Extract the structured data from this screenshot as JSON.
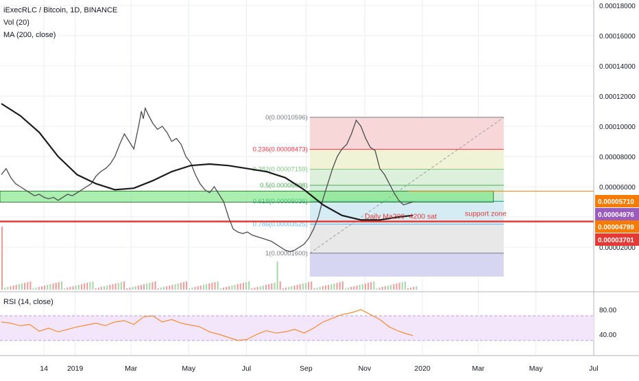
{
  "header": {
    "title": "iExecRLC / Bitcoin, 1D, BINANCE",
    "indicator_vol": "Vol (20)",
    "indicator_ma": "MA (200, close)",
    "indicator_rsi": "RSI (14, close)"
  },
  "chart_data": {
    "type": "line",
    "ylim": [
      0.0,
      0.00019
    ],
    "price_ticks": [
      "0.00018000",
      "0.00016000",
      "0.00014000",
      "0.00012000",
      "0.00010000",
      "0.00008000",
      "0.00006000",
      "0.00004000",
      "0.00002000"
    ],
    "price_tick_values": [
      0.00018,
      0.00016,
      0.00014,
      0.00012,
      0.0001,
      8e-05,
      6e-05,
      4e-05,
      2e-05
    ],
    "x_tick_labels": [
      "14",
      "2019",
      "Mar",
      "May",
      "Jul",
      "Sep",
      "Nov",
      "2020",
      "Mar",
      "May",
      "Jul"
    ],
    "x_tick_index": [
      45,
      78,
      137,
      198,
      259,
      322,
      384,
      445,
      504,
      565,
      626
    ],
    "price_series": {
      "name": "iExecRLC / Bitcoin",
      "x": [
        0,
        5,
        10,
        15,
        20,
        25,
        30,
        35,
        40,
        45,
        50,
        55,
        60,
        65,
        70,
        75,
        80,
        85,
        90,
        95,
        100,
        105,
        110,
        115,
        120,
        125,
        130,
        135,
        140,
        145,
        148,
        150,
        152,
        155,
        160,
        165,
        170,
        175,
        180,
        185,
        190,
        195,
        200,
        205,
        210,
        215,
        220,
        225,
        230,
        235,
        240,
        245,
        250,
        255,
        260,
        265,
        270,
        275,
        280,
        285,
        290,
        295,
        300,
        305,
        310,
        315,
        320,
        325,
        330,
        335,
        340,
        345,
        350,
        355,
        360,
        365,
        370,
        375,
        380,
        385,
        390,
        395,
        400,
        405,
        410,
        415,
        420,
        425,
        430,
        435
      ],
      "y": [
        6.8e-05,
        7.2e-05,
        6.6e-05,
        6.2e-05,
        6e-05,
        5.8e-05,
        5.6e-05,
        5.4e-05,
        5.5e-05,
        5.3e-05,
        5.2e-05,
        5.3e-05,
        5.1e-05,
        5.3e-05,
        5.5e-05,
        5.4e-05,
        5.6e-05,
        5.8e-05,
        6e-05,
        6.2e-05,
        6.7e-05,
        7e-05,
        7.2e-05,
        7.5e-05,
        8e-05,
        8.8e-05,
        9.5e-05,
        9e-05,
        8.5e-05,
        0.0001,
        0.00011,
        0.000105,
        0.000112,
        0.000108,
        0.000102,
        9.8e-05,
        0.0001,
        9.6e-05,
        9e-05,
        9.2e-05,
        8.8e-05,
        8e-05,
        7.6e-05,
        6.8e-05,
        6.2e-05,
        5.8e-05,
        5.6e-05,
        6e-05,
        5.5e-05,
        5e-05,
        4e-05,
        3.2e-05,
        3e-05,
        2.9e-05,
        3e-05,
        2.8e-05,
        2.7e-05,
        2.6e-05,
        2.5e-05,
        2.4e-05,
        2.2e-05,
        2e-05,
        1.8e-05,
        1.7e-05,
        1.8e-05,
        2e-05,
        2.2e-05,
        2.6e-05,
        3.2e-05,
        4e-05,
        5.2e-05,
        6.2e-05,
        7.2e-05,
        8e-05,
        8.5e-05,
        8.8e-05,
        9.5e-05,
        0.000104,
        0.0001,
        9.2e-05,
        8.6e-05,
        8.4e-05,
        7.2e-05,
        6.8e-05,
        6.2e-05,
        5.6e-05,
        5.1e-05,
        4.8e-05,
        4.9e-05,
        5e-05
      ]
    },
    "ma200_series": {
      "x": [
        0,
        20,
        40,
        60,
        80,
        100,
        120,
        140,
        160,
        180,
        200,
        220,
        240,
        260,
        280,
        300,
        320,
        340,
        360,
        380,
        400,
        420,
        435
      ],
      "y": [
        0.000115,
        0.000107,
        9.6e-05,
        8e-05,
        6.8e-05,
        6.2e-05,
        5.8e-05,
        5.9e-05,
        6.4e-05,
        7e-05,
        7.4e-05,
        7.5e-05,
        7.4e-05,
        7.2e-05,
        7e-05,
        6.6e-05,
        5.8e-05,
        4.8e-05,
        4.1e-05,
        3.8e-05,
        3.8e-05,
        4e-05,
        4.1e-05
      ]
    },
    "fibonacci": {
      "levels": [
        {
          "label": "0(0.00010596)",
          "value": 0.00010596,
          "color": "#787b86"
        },
        {
          "label": "0.236(0.00008473)",
          "value": 8.473e-05,
          "color": "#f23645"
        },
        {
          "label": "0.382(0.00007159)",
          "value": 7.159e-05,
          "color": "#81c784"
        },
        {
          "label": "0.5(0.00006098)",
          "value": 6.098e-05,
          "color": "#4caf50"
        },
        {
          "label": "0.618(0.00005036)",
          "value": 5.036e-05,
          "color": "#089981"
        },
        {
          "label": "0.786(0.00003525)",
          "value": 3.525e-05,
          "color": "#64b5f6"
        },
        {
          "label": "1(0.00001600)",
          "value": 1.6e-05,
          "color": "#787b86"
        }
      ],
      "bands": [
        {
          "from": 0.00010596,
          "to": 8.473e-05,
          "color": "#f8d7d9"
        },
        {
          "from": 8.473e-05,
          "to": 7.159e-05,
          "color": "#f1f3d6"
        },
        {
          "from": 7.159e-05,
          "to": 6.098e-05,
          "color": "#dcf0dc"
        },
        {
          "from": 6.098e-05,
          "to": 5.036e-05,
          "color": "#d4eedb"
        },
        {
          "from": 5.036e-05,
          "to": 3.525e-05,
          "color": "#d6ecf5"
        },
        {
          "from": 3.525e-05,
          "to": 1.6e-05,
          "color": "#e8e8e8"
        },
        {
          "from": 1.6e-05,
          "to": 5e-07,
          "color": "#d6d6f3"
        }
      ]
    },
    "zones": {
      "green_zone": {
        "from": 5.71e-05,
        "to": 4.98e-05
      },
      "support_line": 3.701e-05
    },
    "annotations": {
      "daily_ma": "Daily Ma200 -4200 sat",
      "support_zone": "support zone"
    },
    "price_badges": [
      {
        "label": "0.00005710",
        "value": 5.71e-05,
        "color": "#f57c00"
      },
      {
        "label": "0.00004976",
        "value": 4.976e-05,
        "color": "#9c5bbf"
      },
      {
        "label": "0.00004799",
        "value": 4.799e-05,
        "color": "#f57c00"
      },
      {
        "label": "0.00003701",
        "value": 3.701e-05,
        "color": "#e53935"
      }
    ],
    "rsi": {
      "ylim": [
        0,
        100
      ],
      "ticks": [
        "80.00",
        "40.00"
      ],
      "tick_values": [
        80,
        40
      ],
      "band": [
        30,
        70
      ],
      "x": [
        0,
        10,
        20,
        30,
        40,
        50,
        60,
        70,
        80,
        90,
        100,
        110,
        120,
        130,
        140,
        150,
        160,
        170,
        180,
        190,
        200,
        210,
        220,
        230,
        240,
        250,
        260,
        270,
        280,
        290,
        300,
        310,
        320,
        330,
        340,
        350,
        360,
        370,
        380,
        390,
        400,
        410,
        420,
        430,
        435
      ],
      "values": [
        60,
        58,
        54,
        56,
        45,
        50,
        44,
        48,
        52,
        55,
        58,
        54,
        60,
        62,
        56,
        68,
        70,
        60,
        64,
        58,
        55,
        52,
        44,
        40,
        35,
        30,
        32,
        40,
        46,
        42,
        44,
        48,
        42,
        50,
        60,
        66,
        72,
        75,
        80,
        72,
        64,
        52,
        45,
        40,
        38
      ]
    },
    "colors": {
      "price": "#4a4a4a",
      "ma200": "#1a1a1a",
      "rsi": "#f28b30",
      "rsi_band": "#f3e6fb",
      "grid": "#e9ecf2"
    }
  }
}
